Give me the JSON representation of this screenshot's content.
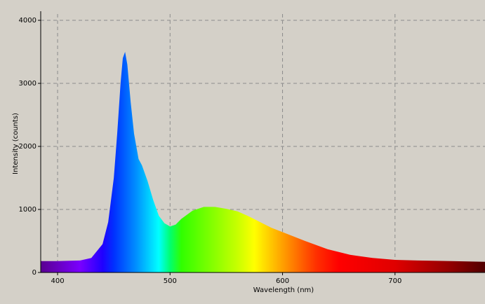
{
  "chart_data": {
    "type": "area",
    "x_label": "Wavelength (nm)",
    "y_label": "Intensity (counts)",
    "x": [
      385,
      400,
      420,
      430,
      440,
      445,
      450,
      453,
      456,
      458,
      460,
      462,
      465,
      468,
      472,
      475,
      480,
      485,
      490,
      495,
      500,
      505,
      510,
      520,
      530,
      540,
      550,
      560,
      570,
      580,
      590,
      600,
      620,
      640,
      660,
      680,
      700,
      720,
      750,
      780
    ],
    "values": [
      180,
      180,
      190,
      230,
      450,
      800,
      1500,
      2200,
      3000,
      3400,
      3500,
      3300,
      2700,
      2200,
      1800,
      1700,
      1450,
      1150,
      900,
      780,
      730,
      760,
      850,
      980,
      1040,
      1040,
      1010,
      970,
      890,
      800,
      710,
      640,
      500,
      370,
      280,
      230,
      200,
      190,
      180,
      170
    ],
    "xlim": [
      385,
      780
    ],
    "ylim": [
      0,
      4100
    ],
    "xticks": [
      400,
      500,
      600,
      700
    ],
    "yticks": [
      0,
      1000,
      2000,
      3000,
      4000
    ],
    "grid": true,
    "gradient": [
      {
        "x": 385,
        "color": "#5a0090"
      },
      {
        "x": 420,
        "color": "#7a00ff"
      },
      {
        "x": 440,
        "color": "#2000ff"
      },
      {
        "x": 450,
        "color": "#0030ff"
      },
      {
        "x": 470,
        "color": "#0090ff"
      },
      {
        "x": 490,
        "color": "#00ffff"
      },
      {
        "x": 500,
        "color": "#00ff70"
      },
      {
        "x": 510,
        "color": "#30ff00"
      },
      {
        "x": 560,
        "color": "#c8ff00"
      },
      {
        "x": 575,
        "color": "#ffff00"
      },
      {
        "x": 600,
        "color": "#ffa000"
      },
      {
        "x": 630,
        "color": "#ff3000"
      },
      {
        "x": 650,
        "color": "#ff0000"
      },
      {
        "x": 700,
        "color": "#e00000"
      },
      {
        "x": 750,
        "color": "#900000"
      },
      {
        "x": 780,
        "color": "#500000"
      }
    ]
  }
}
